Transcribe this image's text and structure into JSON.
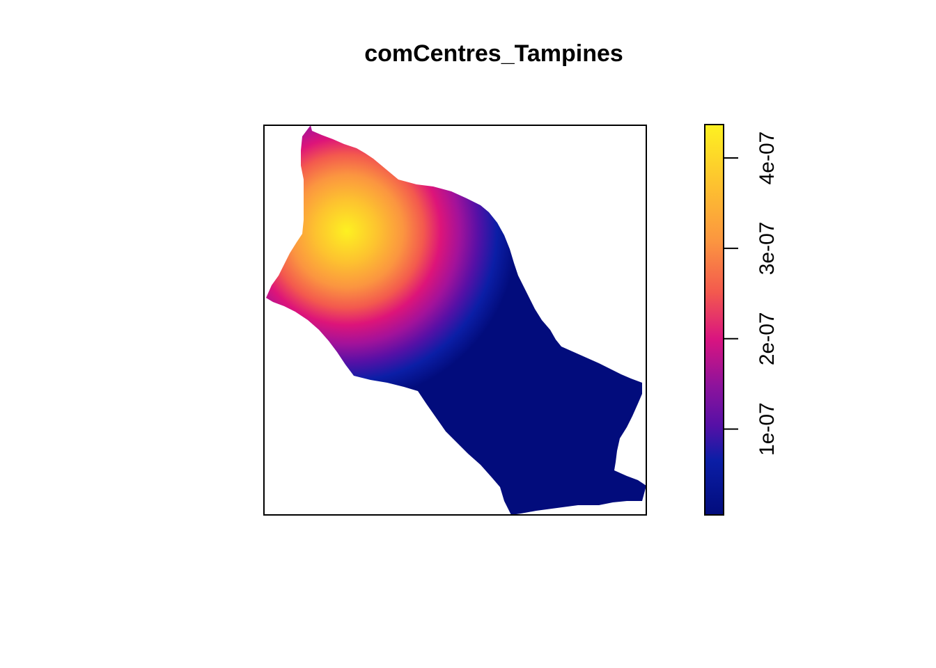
{
  "title": "comCentres_Tampines",
  "legend": {
    "ticks": [
      {
        "value": 1e-07,
        "label": "1e-07"
      },
      {
        "value": 2e-07,
        "label": "2e-07"
      },
      {
        "value": 3e-07,
        "label": "3e-07"
      },
      {
        "value": 4e-07,
        "label": "4e-07"
      }
    ],
    "range": [
      5e-09,
      4.37e-07
    ],
    "placement": "right",
    "palette": [
      "#0d0887",
      "#6a00a8",
      "#b12a90",
      "#e16462",
      "#fca636",
      "#f0f921"
    ]
  },
  "colors": {
    "low": "#020c7c",
    "frame": "#000000"
  }
}
